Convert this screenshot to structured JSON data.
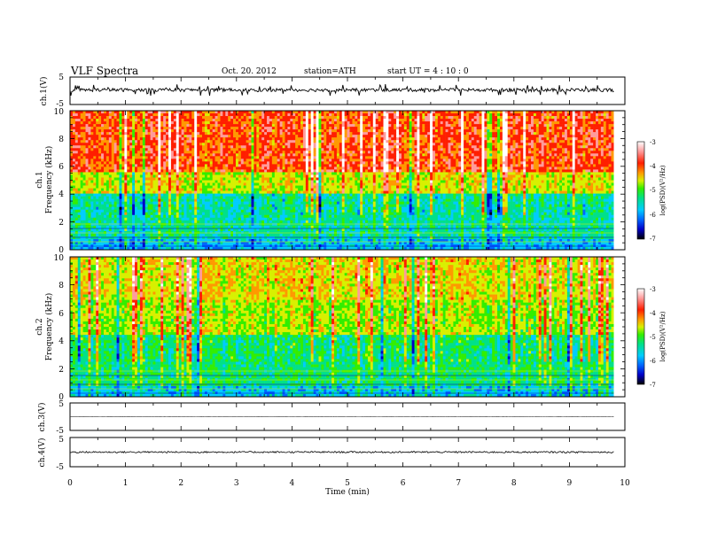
{
  "header": {
    "title": "VLF  Spectra",
    "date": "Oct. 20. 2012",
    "station": "station=ATH",
    "start": "start  UT  =   4  : 10 : 0"
  },
  "chart_data": {
    "type": "heatmap",
    "x_axis": {
      "label": "Time  (min)",
      "range": [
        0,
        10
      ],
      "ticks": [
        0,
        1,
        2,
        3,
        4,
        5,
        6,
        7,
        8,
        9,
        10
      ],
      "data_end": 9.8
    },
    "panels": [
      {
        "kind": "waveform",
        "ylabel": "ch.1(V)",
        "ylim": [
          -5,
          5
        ],
        "yticks": [
          "5",
          "-5"
        ],
        "baseline": 0.3,
        "amplitude": "noisy, spikes to about ±2 V"
      },
      {
        "kind": "spectrogram",
        "ylabel": [
          "ch.1",
          "Frequency  (kHz)"
        ],
        "ylim": [
          0,
          10
        ],
        "yticks": [
          "0",
          "2",
          "4",
          "6",
          "8",
          "10"
        ],
        "colorbar": {
          "label": "log(PSD)(V²/Hz)",
          "range": [
            -7,
            -3
          ],
          "ticks": [
            "-7",
            "-6",
            "-5",
            "-4",
            "-3"
          ]
        }
      },
      {
        "kind": "spectrogram",
        "ylabel": [
          "ch.2",
          "Frequency  (kHz)"
        ],
        "ylim": [
          0,
          10
        ],
        "yticks": [
          "0",
          "2",
          "4",
          "6",
          "8",
          "10"
        ],
        "colorbar": {
          "label": "log(PSD)(V²/Hz)",
          "range": [
            -7,
            -3
          ],
          "ticks": [
            "-7",
            "-6",
            "-5",
            "-4",
            "-3"
          ]
        }
      },
      {
        "kind": "waveform",
        "ylabel": "ch.3(V)",
        "ylim": [
          -5,
          5
        ],
        "yticks": [
          "5",
          "-5"
        ],
        "baseline": 0,
        "amplitude": "flat, about 0 V"
      },
      {
        "kind": "waveform",
        "ylabel": "ch.4(V)",
        "ylim": [
          -5,
          5
        ],
        "yticks": [
          "5",
          "-5"
        ],
        "baseline": 0,
        "amplitude": "flat, small, about ±0.3 V"
      }
    ],
    "colors": {
      "colormap": [
        "#000000",
        "#0000c8",
        "#0066ff",
        "#00ccff",
        "#00e08a",
        "#33ee00",
        "#d8f000",
        "#ff9900",
        "#ff1e00",
        "#ff9b9b",
        "#ffffff"
      ]
    }
  }
}
